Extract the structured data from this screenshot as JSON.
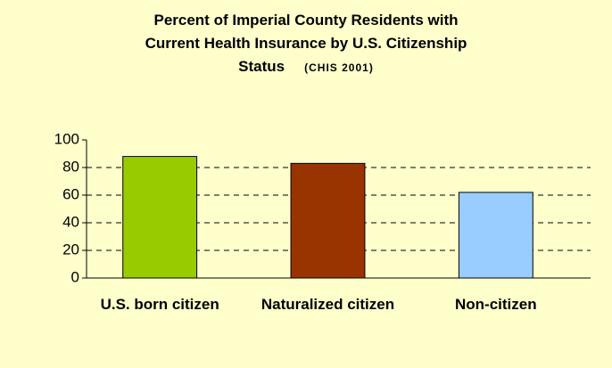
{
  "chart_data": {
    "type": "bar",
    "title": [
      "Percent of Imperial County Residents with",
      "Current Health Insurance by U.S. Citizenship",
      "Status"
    ],
    "subtitle": "(CHIS 2001)",
    "categories": [
      "U.S. born citizen",
      "Naturalized citizen",
      "Non-citizen"
    ],
    "values": [
      88,
      83,
      62
    ],
    "colors": [
      "#99CC00",
      "#993300",
      "#99CCFF"
    ],
    "ylim": [
      0,
      100
    ],
    "yticks": [
      0,
      20,
      40,
      60,
      80,
      100
    ],
    "grid": true
  }
}
